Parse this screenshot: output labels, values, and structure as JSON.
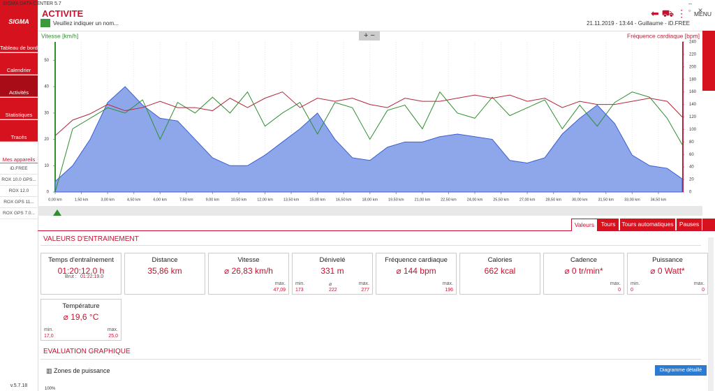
{
  "window": {
    "title": "SIGMA DATA CENTER 5.7"
  },
  "sidebar": {
    "brand": "SIGMA",
    "items": [
      "Tableau de bord",
      "Calendrier",
      "Activités",
      "Statistiques",
      "Tracés",
      "Mes appareils"
    ],
    "devices": [
      "iD.FREE",
      "ROX 10.0 GPS...",
      "ROX 12.0",
      "ROX GPS 11...",
      "ROX GPS 7.0..."
    ],
    "version": "v.5.7.18"
  },
  "header": {
    "title": "ACTIVITE",
    "name_placeholder": "Veuillez indiquer un nom...",
    "info": "21.11.2019 - 13:44 - Guillaume - iD.FREE",
    "menu": "MENU"
  },
  "chart_data": {
    "type": "line",
    "y_label": "Vitesse [km/h]",
    "y2_label": "Fréquence cardiaque [bpm]",
    "x": [
      0,
      1,
      2,
      3,
      4,
      5,
      6,
      7,
      8,
      9,
      10,
      11,
      12,
      13,
      14,
      15,
      16,
      17,
      18,
      19,
      20,
      21,
      22,
      23,
      24,
      25,
      26,
      27,
      28,
      29,
      30,
      31,
      32,
      33,
      34,
      35,
      35.86
    ],
    "xlim": [
      0,
      35.86
    ],
    "xticks": [
      {
        "value": 0,
        "label": "0,00 km"
      },
      {
        "value": 1.5,
        "label": "1,50 km"
      },
      {
        "value": 3,
        "label": "3,00 km"
      },
      {
        "value": 4.5,
        "label": "4,50 km"
      },
      {
        "value": 6,
        "label": "6,00 km"
      },
      {
        "value": 7.5,
        "label": "7,50 km"
      },
      {
        "value": 9,
        "label": "9,00 km"
      },
      {
        "value": 10.5,
        "label": "10,50 km"
      },
      {
        "value": 12,
        "label": "12,00 km"
      },
      {
        "value": 13.5,
        "label": "13,50 km"
      },
      {
        "value": 15,
        "label": "15,00 km"
      },
      {
        "value": 16.5,
        "label": "16,50 km"
      },
      {
        "value": 18,
        "label": "18,00 km"
      },
      {
        "value": 19.5,
        "label": "19,50 km"
      },
      {
        "value": 21,
        "label": "21,00 km"
      },
      {
        "value": 22.5,
        "label": "22,50 km"
      },
      {
        "value": 24,
        "label": "24,00 km"
      },
      {
        "value": 25.5,
        "label": "25,50 km"
      },
      {
        "value": 27,
        "label": "27,00 km"
      },
      {
        "value": 28.5,
        "label": "28,50 km"
      },
      {
        "value": 30,
        "label": "30,00 km"
      },
      {
        "value": 31.5,
        "label": "31,50 km"
      },
      {
        "value": 33,
        "label": "33,00 km"
      },
      {
        "value": 34.5,
        "label": "34,50 km"
      }
    ],
    "ylim": [
      0,
      57
    ],
    "yticks": [
      0,
      10,
      20,
      30,
      40,
      50
    ],
    "y2lim": [
      0,
      240
    ],
    "y2ticks": [
      0,
      20,
      40,
      60,
      80,
      100,
      120,
      140,
      160,
      180,
      200,
      220,
      240
    ],
    "grid": true,
    "area": {
      "color": "#8ea6ea",
      "values": [
        4,
        10,
        20,
        34,
        40,
        33,
        28,
        27,
        20,
        13,
        10,
        10,
        14,
        19,
        24,
        30,
        20,
        13,
        12,
        17,
        19,
        19,
        21,
        22,
        21,
        20,
        12,
        11,
        13,
        22,
        28,
        33,
        26,
        14,
        10,
        9,
        5
      ]
    },
    "series": [
      {
        "name": "Vitesse",
        "color": "#2f8f2f",
        "values": [
          0,
          24,
          28,
          32,
          30,
          35,
          20,
          34,
          30,
          36,
          30,
          38,
          25,
          30,
          34,
          22,
          34,
          32,
          20,
          31,
          33,
          24,
          38,
          30,
          28,
          36,
          29,
          32,
          35,
          24,
          33,
          25,
          34,
          38,
          36,
          28,
          18
        ]
      },
      {
        "name": "Fréquence cardiaque",
        "color": "#b3263a",
        "axis": "y2",
        "values": [
          90,
          115,
          125,
          140,
          130,
          135,
          145,
          135,
          135,
          130,
          150,
          135,
          150,
          160,
          135,
          150,
          145,
          150,
          140,
          135,
          150,
          145,
          145,
          150,
          155,
          150,
          155,
          145,
          150,
          135,
          145,
          140,
          140,
          145,
          150,
          145,
          120
        ]
      }
    ]
  },
  "tabs": [
    "Valeurs",
    "Tours",
    "Tours automatiques",
    "Pauses"
  ],
  "sections": {
    "values": "VALEURS D'ENTRAINEMENT",
    "graphs": "EVALUATION GRAPHIQUE",
    "zones": "Zones de puissance",
    "detail_button": "Diagramme détaillé",
    "zoom": "100%"
  },
  "cards": [
    {
      "title": "Temps d'entraînement",
      "value": "01:20:12.0 h",
      "brut": [
        "Brut :",
        "01:22:19.0"
      ]
    },
    {
      "title": "Distance",
      "value": "35,86 km"
    },
    {
      "title": "Vitesse",
      "value": "⌀ 26,83 km/h",
      "labels": [
        "max."
      ],
      "figures": [
        "47,09"
      ]
    },
    {
      "title": "Dénivelé",
      "value": "331 m",
      "labels": [
        "min.",
        "⌀",
        "max."
      ],
      "figures": [
        "173",
        "222",
        "277"
      ]
    },
    {
      "title": "Fréquence cardiaque",
      "value": "⌀ 144 bpm",
      "labels": [
        "max."
      ],
      "figures": [
        "196"
      ]
    },
    {
      "title": "Calories",
      "value": "662 kcal"
    },
    {
      "title": "Cadence",
      "value": "⌀ 0 tr/min*",
      "labels": [
        "max."
      ],
      "figures": [
        "0"
      ]
    },
    {
      "title": "Puissance",
      "value": "⌀ 0 Watt*",
      "labels": [
        "min.",
        "max."
      ],
      "figures": [
        "0",
        "0"
      ]
    },
    {
      "title": "Température",
      "value": "⌀ 19,6 °C",
      "labels": [
        "min.",
        "max."
      ],
      "figures": [
        "17,0",
        "25,0"
      ]
    }
  ]
}
